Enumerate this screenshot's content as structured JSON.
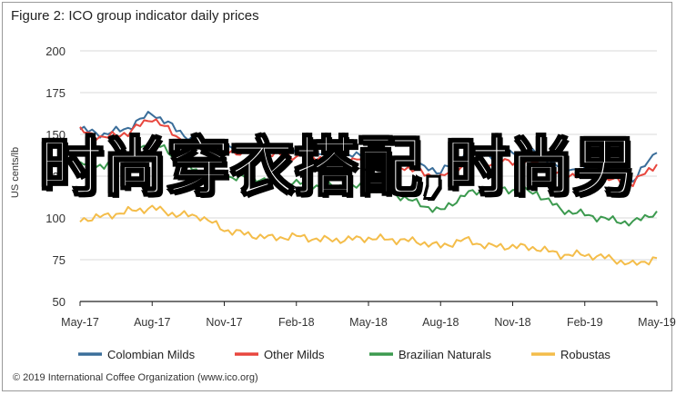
{
  "title": "Figure 2: ICO group indicator daily prices",
  "credit": "© 2019 International Coffee Organization (www.ico.org)",
  "overlay_text": "时尚穿衣搭配,时尚男",
  "colors": {
    "colombian": "#3b6e9a",
    "other": "#e8473e",
    "brazilian": "#3c9a4f",
    "robustas": "#f4bd4a",
    "grid": "#d9d9d9",
    "axis": "#222222"
  },
  "chart_data": {
    "type": "line",
    "title": "Figure 2: ICO group indicator daily prices",
    "xlabel": "",
    "ylabel": "US cents/lb",
    "ylim": [
      50,
      200
    ],
    "yticks": [
      "200",
      "175",
      "150",
      "125",
      "100",
      "75",
      "50"
    ],
    "ytick_values": [
      200,
      175,
      150,
      125,
      100,
      75,
      50
    ],
    "xticks": [
      "May-17",
      "Aug-17",
      "Nov-17",
      "Feb-18",
      "May-18",
      "Aug-18",
      "Nov-18",
      "Feb-19",
      "May-19"
    ],
    "x": [
      "May-17",
      "Jun-17",
      "Jul-17",
      "Aug-17",
      "Sep-17",
      "Oct-17",
      "Nov-17",
      "Dec-17",
      "Jan-18",
      "Feb-18",
      "Mar-18",
      "Apr-18",
      "May-18",
      "Jun-18",
      "Jul-18",
      "Aug-18",
      "Sep-18",
      "Oct-18",
      "Nov-18",
      "Dec-18",
      "Jan-19",
      "Feb-19",
      "Mar-19",
      "Apr-19",
      "May-19"
    ],
    "grid": true,
    "legend_position": "bottom",
    "series": [
      {
        "name": "Colombian Milds",
        "color_key": "colombian",
        "values": [
          153,
          150,
          154,
          163,
          153,
          144,
          143,
          141,
          141,
          141,
          139,
          139,
          138,
          136,
          131,
          128,
          138,
          137,
          139,
          139,
          130,
          129,
          125,
          123,
          139
        ]
      },
      {
        "name": "Other Milds",
        "color_key": "other",
        "values": [
          152,
          148,
          151,
          160,
          149,
          141,
          140,
          139,
          138,
          137,
          136,
          135,
          135,
          133,
          128,
          124,
          132,
          133,
          134,
          133,
          126,
          126,
          123,
          121,
          132
        ]
      },
      {
        "name": "Brazilian Naturals",
        "color_key": "brazilian",
        "values": [
          133,
          130,
          137,
          146,
          136,
          126,
          125,
          124,
          123,
          121,
          119,
          119,
          118,
          115,
          109,
          104,
          114,
          117,
          117,
          115,
          105,
          102,
          99,
          97,
          104
        ]
      },
      {
        "name": "Robustas",
        "color_key": "robustas",
        "values": [
          99,
          101,
          104,
          106,
          102,
          101,
          93,
          90,
          88,
          89,
          87,
          87,
          88,
          87,
          86,
          83,
          87,
          83,
          83,
          82,
          78,
          78,
          76,
          72,
          76
        ]
      }
    ]
  }
}
